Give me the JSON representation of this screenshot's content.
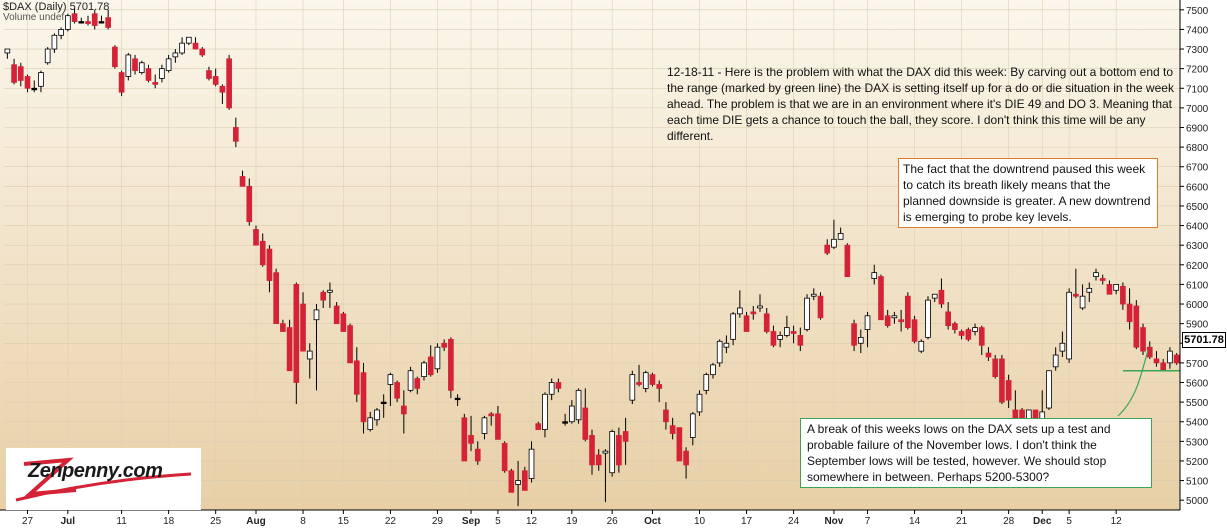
{
  "header": {
    "title": "$DAX (Daily) 5701.78",
    "volume_label": "Volume undef"
  },
  "last_price_label": "5701.78",
  "logo_text": "Zenpenny.com",
  "annotations": {
    "main_text": "12-18-11 - Here is the problem with what the DAX did this week: By carving out a bottom end to the range (marked by green line) the DAX is setting itself up for a do or die situation in the week ahead. The problem is that we are in an environment where it's DIE 49 and DO 3. Meaning that each time DIE gets a chance to touch the ball, they score. I don't think this time will be any different.",
    "orange_box": "The fact that the downtrend paused this week to catch its breath likely means that the planned downside is greater. A new downtrend is emerging to probe key levels.",
    "green_box": "A break of this weeks lows on the DAX sets up a test and probable failure of the November lows. I don't think the September lows will be tested, however. We should stop somewhere in between. Perhaps 5200-5300?"
  },
  "colors": {
    "up_candle": "#ffffff",
    "down_candle": "#d42236",
    "doji_candle": "#000000",
    "support_line": "#3aa655",
    "orange_box_border": "#e07a2a",
    "green_box_border": "#3aa655",
    "bg_top": "#fbf7ec",
    "bg_bottom": "#e8cfa6"
  },
  "chart_data": {
    "type": "candlestick",
    "title": "$DAX (Daily) 5701.78",
    "ylim": [
      4950,
      7550
    ],
    "y_ticks": [
      5000,
      5100,
      5200,
      5300,
      5400,
      5500,
      5600,
      5700,
      5800,
      5900,
      6000,
      6100,
      6200,
      6300,
      6400,
      6500,
      6600,
      6700,
      6800,
      6900,
      7000,
      7100,
      7200,
      7300,
      7400,
      7500
    ],
    "y_axis_side": "right",
    "x_tick_labels": [
      "27",
      "Jul",
      "11",
      "18",
      "25",
      "Aug",
      "8",
      "15",
      "22",
      "29",
      "Sep",
      "5",
      "12",
      "19",
      "26",
      "Oct",
      "10",
      "17",
      "24",
      "Nov",
      "7",
      "14",
      "21",
      "28",
      "Dec",
      "5",
      "12"
    ],
    "x_tick_index": [
      3,
      9,
      17,
      24,
      31,
      37,
      44,
      50,
      57,
      64,
      69,
      73,
      78,
      84,
      90,
      96,
      103,
      110,
      117,
      123,
      128,
      135,
      142,
      149,
      154,
      158,
      165
    ],
    "support_level": 5660,
    "candles": [
      [
        7280,
        7300,
        7250,
        7300
      ],
      [
        7220,
        7250,
        7120,
        7130
      ],
      [
        7210,
        7230,
        7110,
        7140
      ],
      [
        7160,
        7170,
        7080,
        7100
      ],
      [
        7100,
        7140,
        7080,
        7100
      ],
      [
        7110,
        7190,
        7080,
        7180
      ],
      [
        7230,
        7310,
        7220,
        7300
      ],
      [
        7300,
        7380,
        7280,
        7370
      ],
      [
        7370,
        7410,
        7350,
        7400
      ],
      [
        7400,
        7480,
        7390,
        7470
      ],
      [
        7480,
        7510,
        7430,
        7440
      ],
      [
        7440,
        7460,
        7430,
        7440
      ],
      [
        7440,
        7470,
        7420,
        7430
      ],
      [
        7480,
        7500,
        7400,
        7420
      ],
      [
        7440,
        7470,
        7430,
        7440
      ],
      [
        7460,
        7500,
        7400,
        7410
      ],
      [
        7310,
        7320,
        7200,
        7210
      ],
      [
        7180,
        7190,
        7060,
        7080
      ],
      [
        7160,
        7280,
        7140,
        7270
      ],
      [
        7250,
        7270,
        7170,
        7190
      ],
      [
        7180,
        7240,
        7170,
        7230
      ],
      [
        7200,
        7220,
        7130,
        7140
      ],
      [
        7130,
        7170,
        7100,
        7120
      ],
      [
        7150,
        7220,
        7130,
        7200
      ],
      [
        7190,
        7270,
        7180,
        7250
      ],
      [
        7260,
        7300,
        7230,
        7280
      ],
      [
        7280,
        7360,
        7270,
        7330
      ],
      [
        7330,
        7350,
        7320,
        7360
      ],
      [
        7330,
        7360,
        7300,
        7300
      ],
      [
        7300,
        7310,
        7260,
        7270
      ],
      [
        7190,
        7210,
        7140,
        7150
      ],
      [
        7160,
        7200,
        7110,
        7120
      ],
      [
        7110,
        7120,
        7020,
        7080
      ],
      [
        7250,
        7270,
        6990,
        7000
      ],
      [
        6900,
        6950,
        6800,
        6830
      ],
      [
        6650,
        6680,
        6600,
        6600
      ],
      [
        6600,
        6640,
        6400,
        6420
      ],
      [
        6380,
        6400,
        6300,
        6300
      ],
      [
        6320,
        6360,
        6190,
        6200
      ],
      [
        6280,
        6300,
        6060,
        6120
      ],
      [
        6160,
        6180,
        5900,
        5900
      ],
      [
        5900,
        5920,
        5860,
        5860
      ],
      [
        5880,
        5920,
        5660,
        5660
      ],
      [
        6100,
        6110,
        5490,
        5600
      ],
      [
        6000,
        6060,
        5760,
        5760
      ],
      [
        5720,
        5800,
        5620,
        5760
      ],
      [
        5920,
        6000,
        5560,
        5970
      ],
      [
        6060,
        6070,
        5980,
        6020
      ],
      [
        6060,
        6110,
        5980,
        6070
      ],
      [
        5990,
        6010,
        5900,
        5900
      ],
      [
        5950,
        5960,
        5860,
        5860
      ],
      [
        5890,
        5900,
        5700,
        5700
      ],
      [
        5710,
        5780,
        5500,
        5540
      ],
      [
        5650,
        5700,
        5340,
        5400
      ],
      [
        5360,
        5450,
        5350,
        5420
      ],
      [
        5410,
        5470,
        5380,
        5460
      ],
      [
        5500,
        5540,
        5420,
        5500
      ],
      [
        5590,
        5650,
        5480,
        5640
      ],
      [
        5600,
        5610,
        5500,
        5520
      ],
      [
        5480,
        5560,
        5340,
        5440
      ],
      [
        5560,
        5680,
        5550,
        5660
      ],
      [
        5620,
        5630,
        5540,
        5570
      ],
      [
        5630,
        5710,
        5610,
        5700
      ],
      [
        5730,
        5790,
        5630,
        5640
      ],
      [
        5670,
        5800,
        5650,
        5780
      ],
      [
        5800,
        5820,
        5760,
        5780
      ],
      [
        5820,
        5830,
        5520,
        5560
      ],
      [
        5520,
        5540,
        5480,
        5520
      ],
      [
        5420,
        5440,
        5200,
        5200
      ],
      [
        5330,
        5430,
        5250,
        5290
      ],
      [
        5260,
        5300,
        5180,
        5200
      ],
      [
        5340,
        5430,
        5310,
        5420
      ],
      [
        5440,
        5450,
        5380,
        5430
      ],
      [
        5440,
        5480,
        5310,
        5310
      ],
      [
        5290,
        5300,
        5140,
        5150
      ],
      [
        5150,
        5160,
        5040,
        5040
      ],
      [
        5080,
        5200,
        4970,
        5100
      ],
      [
        5150,
        5170,
        5050,
        5050
      ],
      [
        5110,
        5300,
        5090,
        5260
      ],
      [
        5390,
        5400,
        5360,
        5360
      ],
      [
        5360,
        5550,
        5320,
        5540
      ],
      [
        5540,
        5620,
        5510,
        5600
      ],
      [
        5600,
        5620,
        5550,
        5570
      ],
      [
        5400,
        5440,
        5380,
        5400
      ],
      [
        5400,
        5510,
        5390,
        5480
      ],
      [
        5410,
        5570,
        5390,
        5560
      ],
      [
        5470,
        5570,
        5300,
        5310
      ],
      [
        5330,
        5360,
        5130,
        5180
      ],
      [
        5230,
        5260,
        5150,
        5180
      ],
      [
        5240,
        5260,
        4990,
        5250
      ],
      [
        5140,
        5360,
        5120,
        5350
      ],
      [
        5330,
        5370,
        5140,
        5180
      ],
      [
        5350,
        5420,
        5180,
        5300
      ],
      [
        5510,
        5660,
        5490,
        5640
      ],
      [
        5600,
        5690,
        5580,
        5590
      ],
      [
        5570,
        5660,
        5550,
        5650
      ],
      [
        5640,
        5650,
        5580,
        5590
      ],
      [
        5590,
        5610,
        5500,
        5570
      ],
      [
        5460,
        5500,
        5360,
        5400
      ],
      [
        5380,
        5420,
        5310,
        5340
      ],
      [
        5370,
        5370,
        5200,
        5200
      ],
      [
        5250,
        5270,
        5110,
        5180
      ],
      [
        5320,
        5450,
        5280,
        5440
      ],
      [
        5450,
        5560,
        5430,
        5540
      ],
      [
        5560,
        5650,
        5540,
        5640
      ],
      [
        5640,
        5700,
        5620,
        5690
      ],
      [
        5700,
        5820,
        5680,
        5810
      ],
      [
        5780,
        5840,
        5750,
        5800
      ],
      [
        5820,
        5960,
        5790,
        5950
      ],
      [
        5950,
        6070,
        5930,
        5980
      ],
      [
        5940,
        5960,
        5860,
        5860
      ],
      [
        5960,
        5990,
        5920,
        5950
      ],
      [
        5980,
        6050,
        5960,
        5990
      ],
      [
        5950,
        5980,
        5850,
        5860
      ],
      [
        5860,
        5890,
        5780,
        5790
      ],
      [
        5820,
        5860,
        5780,
        5840
      ],
      [
        5840,
        5940,
        5830,
        5880
      ],
      [
        5860,
        5890,
        5800,
        5850
      ],
      [
        5840,
        5880,
        5760,
        5790
      ],
      [
        5870,
        6050,
        5860,
        6030
      ],
      [
        6040,
        6080,
        6020,
        6050
      ],
      [
        6040,
        6060,
        5920,
        5930
      ],
      [
        6300,
        6330,
        6250,
        6260
      ],
      [
        6290,
        6430,
        6280,
        6330
      ],
      [
        6330,
        6390,
        6330,
        6360
      ],
      [
        6300,
        6310,
        6140,
        6140
      ],
      [
        5900,
        5920,
        5760,
        5790
      ],
      [
        5800,
        5870,
        5750,
        5830
      ],
      [
        5870,
        5960,
        5780,
        5940
      ],
      [
        6130,
        6200,
        6100,
        6160
      ],
      [
        6140,
        6150,
        5920,
        5920
      ],
      [
        5940,
        5970,
        5880,
        5890
      ],
      [
        5930,
        5960,
        5900,
        5940
      ],
      [
        5920,
        5970,
        5860,
        5910
      ],
      [
        6040,
        6060,
        5870,
        5880
      ],
      [
        5920,
        5940,
        5800,
        5810
      ],
      [
        5760,
        5820,
        5750,
        5810
      ],
      [
        5830,
        6040,
        5820,
        6020
      ],
      [
        6030,
        6050,
        6010,
        6050
      ],
      [
        6070,
        6130,
        5980,
        6000
      ],
      [
        5960,
        6010,
        5870,
        5890
      ],
      [
        5900,
        5910,
        5850,
        5870
      ],
      [
        5860,
        5870,
        5820,
        5840
      ],
      [
        5870,
        5880,
        5810,
        5820
      ],
      [
        5860,
        5900,
        5840,
        5880
      ],
      [
        5880,
        5890,
        5740,
        5790
      ],
      [
        5750,
        5780,
        5710,
        5730
      ],
      [
        5720,
        5740,
        5620,
        5630
      ],
      [
        5720,
        5740,
        5490,
        5500
      ],
      [
        5610,
        5640,
        5470,
        5510
      ],
      [
        5460,
        5560,
        5390,
        5400
      ],
      [
        5460,
        5470,
        5360,
        5380
      ],
      [
        5370,
        5440,
        5360,
        5460
      ],
      [
        5460,
        5460,
        5400,
        5400
      ],
      [
        5400,
        5560,
        5360,
        5450
      ],
      [
        5470,
        5660,
        5460,
        5660
      ],
      [
        5680,
        5780,
        5660,
        5740
      ],
      [
        5760,
        5860,
        5730,
        5800
      ],
      [
        5720,
        6080,
        5700,
        6060
      ],
      [
        6050,
        6180,
        6030,
        6040
      ],
      [
        5980,
        6100,
        5970,
        6040
      ],
      [
        6060,
        6110,
        6010,
        6080
      ],
      [
        6140,
        6180,
        6120,
        6160
      ],
      [
        6130,
        6150,
        6100,
        6120
      ],
      [
        6100,
        6120,
        6050,
        6050
      ],
      [
        6070,
        6090,
        6050,
        6100
      ],
      [
        6090,
        6110,
        5970,
        6000
      ],
      [
        6000,
        6080,
        5870,
        5910
      ],
      [
        5990,
        6020,
        5770,
        5780
      ],
      [
        5880,
        5900,
        5740,
        5760
      ],
      [
        5780,
        5810,
        5720,
        5730
      ],
      [
        5720,
        5760,
        5680,
        5700
      ],
      [
        5700,
        5720,
        5660,
        5660
      ],
      [
        5700,
        5780,
        5670,
        5760
      ],
      [
        5740,
        5750,
        5690,
        5700
      ]
    ]
  }
}
